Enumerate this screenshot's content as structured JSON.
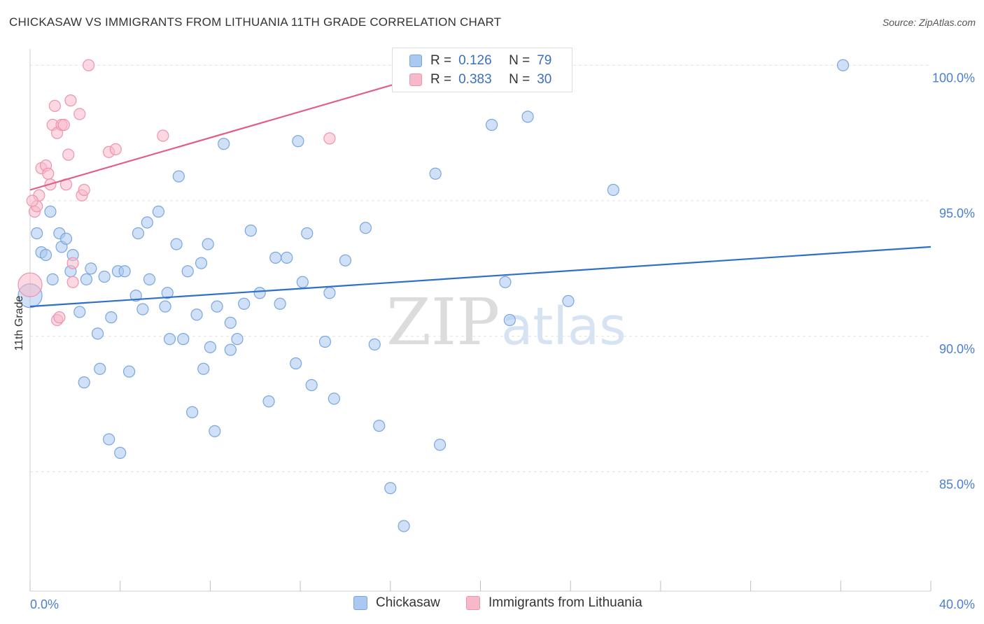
{
  "header": {
    "title": "CHICKASAW VS IMMIGRANTS FROM LITHUANIA 11TH GRADE CORRELATION CHART",
    "source": "Source: ZipAtlas.com"
  },
  "legend_top": {
    "rows": [
      {
        "r_label": "R =",
        "r_value": "0.126",
        "n_label": "N =",
        "n_value": "79"
      },
      {
        "r_label": "R =",
        "r_value": "0.383",
        "n_label": "N =",
        "n_value": "30"
      }
    ]
  },
  "legend_bottom": {
    "items": [
      "Chickasaw",
      "Immigrants from Lithuania"
    ]
  },
  "watermark": {
    "part1": "ZIP",
    "part2": "atlas"
  },
  "colors": {
    "blue_fill": "#aac8f0",
    "blue_stroke": "#7aa6e0",
    "blue_line": "#2e6fcc",
    "pink_fill": "#f7b8ca",
    "pink_stroke": "#ee94ae",
    "pink_line": "#e05f8a",
    "tick_text": "#4a7fd0",
    "grid": "#e2e2e2"
  },
  "chart_data": {
    "type": "scatter",
    "title": "CHICKASAW VS IMMIGRANTS FROM LITHUANIA 11TH GRADE CORRELATION CHART",
    "xlabel": "",
    "ylabel": "11th Grade",
    "xlim": [
      0,
      40
    ],
    "ylim": [
      80.6,
      100.6
    ],
    "x_tick_labels": [
      "0.0%",
      "40.0%"
    ],
    "y_ticks": [
      85,
      90,
      95,
      100
    ],
    "y_tick_labels": [
      "85.0%",
      "90.0%",
      "95.0%",
      "100.0%"
    ],
    "grid": true,
    "legend_position": "top-center",
    "series": [
      {
        "name": "Chickasaw",
        "color": "#aac8f0",
        "r": 0.126,
        "n": 79,
        "trend": {
          "x": [
            0,
            40
          ],
          "y": [
            91.1,
            93.3
          ]
        },
        "points": [
          [
            0.0,
            91.5
          ],
          [
            0.3,
            93.8
          ],
          [
            0.5,
            93.1
          ],
          [
            0.7,
            93.0
          ],
          [
            0.9,
            94.6
          ],
          [
            1.0,
            92.1
          ],
          [
            1.3,
            93.8
          ],
          [
            1.4,
            93.3
          ],
          [
            1.6,
            93.6
          ],
          [
            1.9,
            93.0
          ],
          [
            1.8,
            92.4
          ],
          [
            2.2,
            90.9
          ],
          [
            2.4,
            88.3
          ],
          [
            2.5,
            92.1
          ],
          [
            2.7,
            92.5
          ],
          [
            3.0,
            90.1
          ],
          [
            3.1,
            88.8
          ],
          [
            3.3,
            92.2
          ],
          [
            3.5,
            86.2
          ],
          [
            3.6,
            90.7
          ],
          [
            3.9,
            92.4
          ],
          [
            4.0,
            85.7
          ],
          [
            4.2,
            92.4
          ],
          [
            4.4,
            88.7
          ],
          [
            4.7,
            91.5
          ],
          [
            4.8,
            93.8
          ],
          [
            5.0,
            91.0
          ],
          [
            5.2,
            94.2
          ],
          [
            5.3,
            92.1
          ],
          [
            5.7,
            94.6
          ],
          [
            6.0,
            91.1
          ],
          [
            6.1,
            91.6
          ],
          [
            6.2,
            89.9
          ],
          [
            6.5,
            93.4
          ],
          [
            6.6,
            95.9
          ],
          [
            6.8,
            89.9
          ],
          [
            7.0,
            92.4
          ],
          [
            7.2,
            87.2
          ],
          [
            7.4,
            90.8
          ],
          [
            7.6,
            92.7
          ],
          [
            7.7,
            88.8
          ],
          [
            7.9,
            93.4
          ],
          [
            8.0,
            89.6
          ],
          [
            8.2,
            86.5
          ],
          [
            8.3,
            91.1
          ],
          [
            8.6,
            97.1
          ],
          [
            8.9,
            89.5
          ],
          [
            8.9,
            90.5
          ],
          [
            9.2,
            89.9
          ],
          [
            9.5,
            91.2
          ],
          [
            9.8,
            93.9
          ],
          [
            10.2,
            91.6
          ],
          [
            10.6,
            87.6
          ],
          [
            10.9,
            92.9
          ],
          [
            11.1,
            91.2
          ],
          [
            11.4,
            92.9
          ],
          [
            11.8,
            89.0
          ],
          [
            11.9,
            97.2
          ],
          [
            12.1,
            92.0
          ],
          [
            12.3,
            93.8
          ],
          [
            12.5,
            88.2
          ],
          [
            13.1,
            89.8
          ],
          [
            13.3,
            91.6
          ],
          [
            13.5,
            87.7
          ],
          [
            14.0,
            92.8
          ],
          [
            14.9,
            94.0
          ],
          [
            15.3,
            89.7
          ],
          [
            15.5,
            86.7
          ],
          [
            16.0,
            84.4
          ],
          [
            16.6,
            83.0
          ],
          [
            18.0,
            96.0
          ],
          [
            18.2,
            86.0
          ],
          [
            20.5,
            97.8
          ],
          [
            21.1,
            92.0
          ],
          [
            21.3,
            90.6
          ],
          [
            22.1,
            98.1
          ],
          [
            23.9,
            91.3
          ],
          [
            25.9,
            95.4
          ],
          [
            36.1,
            100.0
          ]
        ]
      },
      {
        "name": "Immigrants from Lithuania",
        "color": "#f7b8ca",
        "r": 0.383,
        "n": 30,
        "trend": {
          "x": [
            0,
            19.1
          ],
          "y": [
            95.4,
            100.0
          ]
        },
        "points": [
          [
            0.0,
            91.9
          ],
          [
            0.2,
            94.6
          ],
          [
            0.3,
            94.8
          ],
          [
            0.4,
            95.2
          ],
          [
            0.5,
            96.2
          ],
          [
            0.7,
            96.3
          ],
          [
            0.8,
            96.0
          ],
          [
            0.9,
            95.6
          ],
          [
            1.0,
            97.8
          ],
          [
            1.1,
            98.5
          ],
          [
            1.2,
            90.6
          ],
          [
            1.2,
            97.5
          ],
          [
            1.4,
            97.8
          ],
          [
            1.5,
            97.8
          ],
          [
            1.6,
            95.6
          ],
          [
            1.7,
            96.7
          ],
          [
            1.8,
            98.7
          ],
          [
            1.9,
            92.7
          ],
          [
            1.9,
            92.0
          ],
          [
            2.2,
            98.2
          ],
          [
            2.3,
            95.2
          ],
          [
            2.4,
            95.4
          ],
          [
            2.6,
            100.0
          ],
          [
            3.5,
            96.8
          ],
          [
            3.8,
            96.9
          ],
          [
            5.9,
            97.4
          ],
          [
            13.3,
            97.3
          ],
          [
            19.0,
            100.0
          ],
          [
            0.1,
            95.0
          ],
          [
            1.3,
            90.7
          ]
        ]
      }
    ]
  }
}
